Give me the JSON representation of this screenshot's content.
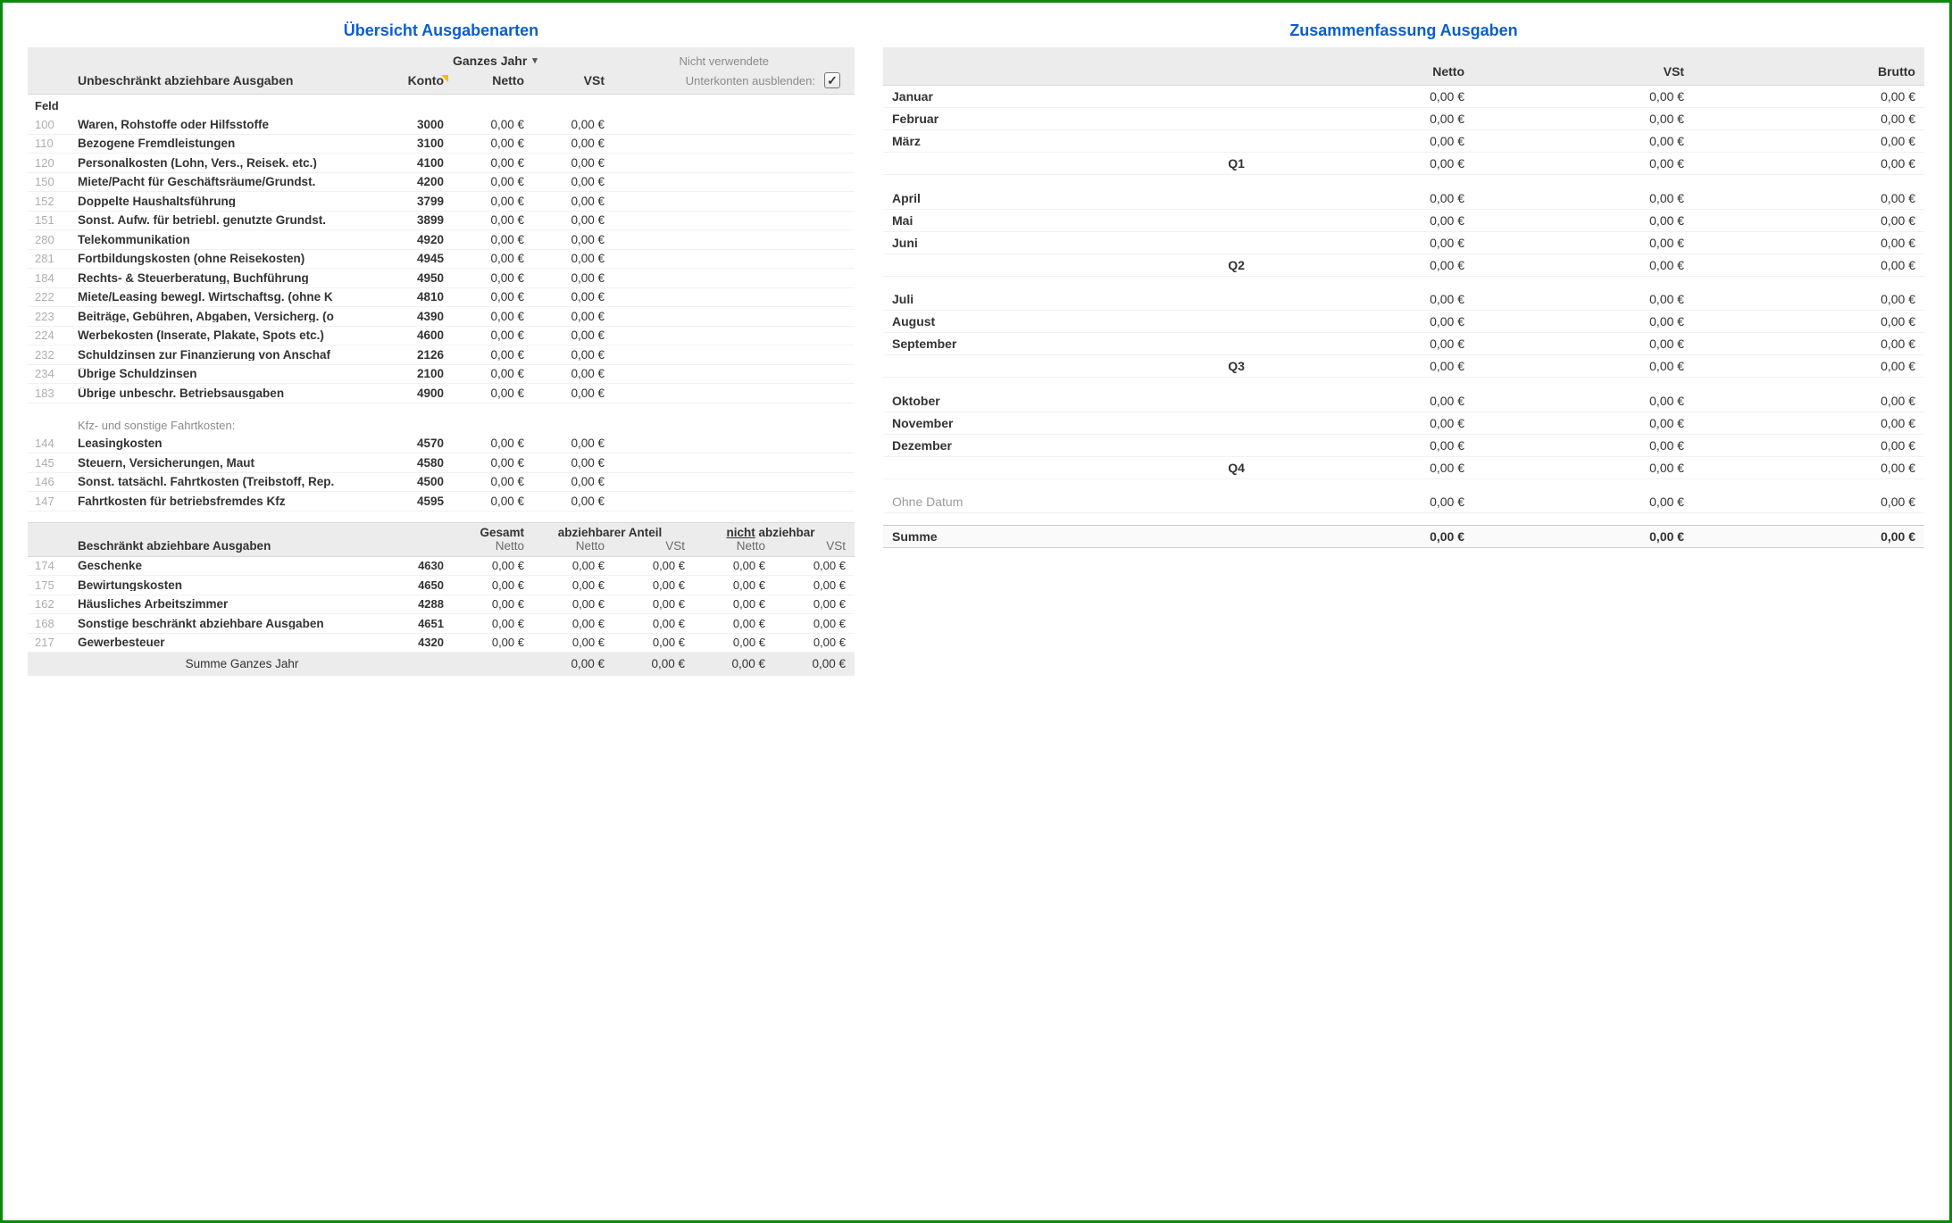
{
  "titles": {
    "left": "Übersicht Ausgabenarten",
    "right": "Zusammenfassung Ausgaben"
  },
  "left": {
    "period_label": "Ganzes Jahr",
    "not_used_label": "Nicht verwendete",
    "hide_subaccounts_label": "Unterkonten ausblenden:",
    "hide_subaccounts_checked": true,
    "section1_label": "Unbeschränkt abziehbare Ausgaben",
    "col_konto": "Konto",
    "col_netto": "Netto",
    "col_vst": "VSt",
    "feld_label": "Feld",
    "rows": [
      {
        "code": "100",
        "name": "Waren, Rohstoffe oder Hilfsstoffe",
        "konto": "3000",
        "netto": "0,00 €",
        "vst": "0,00 €"
      },
      {
        "code": "110",
        "name": "Bezogene Fremdleistungen",
        "konto": "3100",
        "netto": "0,00 €",
        "vst": "0,00 €"
      },
      {
        "code": "120",
        "name": "Personalkosten (Lohn, Vers., Reisek. etc.)",
        "konto": "4100",
        "netto": "0,00 €",
        "vst": "0,00 €"
      },
      {
        "code": "150",
        "name": "Miete/Pacht für Geschäftsräume/Grundst.",
        "konto": "4200",
        "netto": "0,00 €",
        "vst": "0,00 €"
      },
      {
        "code": "152",
        "name": "Doppelte Haushaltsführung",
        "konto": "3799",
        "netto": "0,00 €",
        "vst": "0,00 €"
      },
      {
        "code": "151",
        "name": "Sonst. Aufw. für betriebl. genutzte Grundst.",
        "konto": "3899",
        "netto": "0,00 €",
        "vst": "0,00 €"
      },
      {
        "code": "280",
        "name": "Telekommunikation",
        "konto": "4920",
        "netto": "0,00 €",
        "vst": "0,00 €"
      },
      {
        "code": "281",
        "name": "Fortbildungskosten (ohne Reisekosten)",
        "konto": "4945",
        "netto": "0,00 €",
        "vst": "0,00 €"
      },
      {
        "code": "184",
        "name": "Rechts- & Steuerberatung, Buchführung",
        "konto": "4950",
        "netto": "0,00 €",
        "vst": "0,00 €"
      },
      {
        "code": "222",
        "name": "Miete/Leasing bewegl. Wirtschaftsg. (ohne K",
        "konto": "4810",
        "netto": "0,00 €",
        "vst": "0,00 €"
      },
      {
        "code": "223",
        "name": "Beiträge, Gebühren, Abgaben, Versicherg. (o",
        "konto": "4390",
        "netto": "0,00 €",
        "vst": "0,00 €"
      },
      {
        "code": "224",
        "name": "Werbekosten (Inserate, Plakate, Spots etc.)",
        "konto": "4600",
        "netto": "0,00 €",
        "vst": "0,00 €"
      },
      {
        "code": "232",
        "name": "Schuldzinsen zur Finanzierung von Anschaf",
        "konto": "2126",
        "netto": "0,00 €",
        "vst": "0,00 €"
      },
      {
        "code": "234",
        "name": "Übrige Schuldzinsen",
        "konto": "2100",
        "netto": "0,00 €",
        "vst": "0,00 €"
      },
      {
        "code": "183",
        "name": "Übrige unbeschr. Betriebsausgaben",
        "konto": "4900",
        "netto": "0,00 €",
        "vst": "0,00 €"
      }
    ],
    "vehicle_caption": "Kfz- und sonstige Fahrtkosten:",
    "vehicle_rows": [
      {
        "code": "144",
        "name": "Leasingkosten",
        "konto": "4570",
        "netto": "0,00 €",
        "vst": "0,00 €"
      },
      {
        "code": "145",
        "name": "Steuern, Versicherungen, Maut",
        "konto": "4580",
        "netto": "0,00 €",
        "vst": "0,00 €"
      },
      {
        "code": "146",
        "name": "Sonst. tatsächl. Fahrtkosten (Treibstoff, Rep.",
        "konto": "4500",
        "netto": "0,00 €",
        "vst": "0,00 €"
      },
      {
        "code": "147",
        "name": "Fahrtkosten für betriebsfremdes Kfz",
        "konto": "4595",
        "netto": "0,00 €",
        "vst": "0,00 €"
      }
    ],
    "section2_label": "Beschränkt abziehbare Ausgaben",
    "group_gesamt": "Gesamt",
    "group_abziehbar": "abziehbarer Anteil",
    "group_nicht_prefix": "nicht",
    "group_nicht_suffix": " abziehbar",
    "sub_netto": "Netto",
    "sub_vst": "VSt",
    "rows2": [
      {
        "code": "174",
        "name": "Geschenke",
        "konto": "4630",
        "n1": "0,00 €",
        "n2": "0,00 €",
        "n3": "0,00 €",
        "n4": "0,00 €",
        "n5": "0,00 €"
      },
      {
        "code": "175",
        "name": "Bewirtungskosten",
        "konto": "4650",
        "n1": "0,00 €",
        "n2": "0,00 €",
        "n3": "0,00 €",
        "n4": "0,00 €",
        "n5": "0,00 €"
      },
      {
        "code": "162",
        "name": "Häusliches Arbeitszimmer",
        "konto": "4288",
        "n1": "0,00 €",
        "n2": "0,00 €",
        "n3": "0,00 €",
        "n4": "0,00 €",
        "n5": "0,00 €"
      },
      {
        "code": "168",
        "name": "Sonstige beschränkt abziehbare Ausgaben",
        "konto": "4651",
        "n1": "0,00 €",
        "n2": "0,00 €",
        "n3": "0,00 €",
        "n4": "0,00 €",
        "n5": "0,00 €"
      },
      {
        "code": "217",
        "name": "Gewerbesteuer",
        "konto": "4320",
        "n1": "0,00 €",
        "n2": "0,00 €",
        "n3": "0,00 €",
        "n4": "0,00 €",
        "n5": "0,00 €"
      }
    ],
    "sum_label": "Summe Ganzes Jahr",
    "sum": {
      "n1": "",
      "n2": "0,00 €",
      "n3": "0,00 €",
      "n4": "0,00 €",
      "n5": "0,00 €"
    }
  },
  "right": {
    "col_empty": "",
    "col_netto": "Netto",
    "col_vst": "VSt",
    "col_brutto": "Brutto",
    "rows": [
      {
        "type": "m",
        "label": "Januar",
        "n": "0,00 €",
        "v": "0,00 €",
        "b": "0,00 €"
      },
      {
        "type": "m",
        "label": "Februar",
        "n": "0,00 €",
        "v": "0,00 €",
        "b": "0,00 €"
      },
      {
        "type": "m",
        "label": "März",
        "n": "0,00 €",
        "v": "0,00 €",
        "b": "0,00 €"
      },
      {
        "type": "q",
        "label": "Q1",
        "n": "0,00 €",
        "v": "0,00 €",
        "b": "0,00 €"
      },
      {
        "type": "gap"
      },
      {
        "type": "m",
        "label": "April",
        "n": "0,00 €",
        "v": "0,00 €",
        "b": "0,00 €"
      },
      {
        "type": "m",
        "label": "Mai",
        "n": "0,00 €",
        "v": "0,00 €",
        "b": "0,00 €"
      },
      {
        "type": "m",
        "label": "Juni",
        "n": "0,00 €",
        "v": "0,00 €",
        "b": "0,00 €"
      },
      {
        "type": "q",
        "label": "Q2",
        "n": "0,00 €",
        "v": "0,00 €",
        "b": "0,00 €"
      },
      {
        "type": "gap"
      },
      {
        "type": "m",
        "label": "Juli",
        "n": "0,00 €",
        "v": "0,00 €",
        "b": "0,00 €"
      },
      {
        "type": "m",
        "label": "August",
        "n": "0,00 €",
        "v": "0,00 €",
        "b": "0,00 €"
      },
      {
        "type": "m",
        "label": "September",
        "n": "0,00 €",
        "v": "0,00 €",
        "b": "0,00 €"
      },
      {
        "type": "q",
        "label": "Q3",
        "n": "0,00 €",
        "v": "0,00 €",
        "b": "0,00 €"
      },
      {
        "type": "gap"
      },
      {
        "type": "m",
        "label": "Oktober",
        "n": "0,00 €",
        "v": "0,00 €",
        "b": "0,00 €"
      },
      {
        "type": "m",
        "label": "November",
        "n": "0,00 €",
        "v": "0,00 €",
        "b": "0,00 €"
      },
      {
        "type": "m",
        "label": "Dezember",
        "n": "0,00 €",
        "v": "0,00 €",
        "b": "0,00 €"
      },
      {
        "type": "q",
        "label": "Q4",
        "n": "0,00 €",
        "v": "0,00 €",
        "b": "0,00 €"
      },
      {
        "type": "gap"
      },
      {
        "type": "nodate",
        "label": "Ohne Datum",
        "n": "0,00 €",
        "v": "0,00 €",
        "b": "0,00 €"
      },
      {
        "type": "gap"
      },
      {
        "type": "total",
        "label": "Summe",
        "n": "0,00 €",
        "v": "0,00 €",
        "b": "0,00 €"
      }
    ]
  }
}
